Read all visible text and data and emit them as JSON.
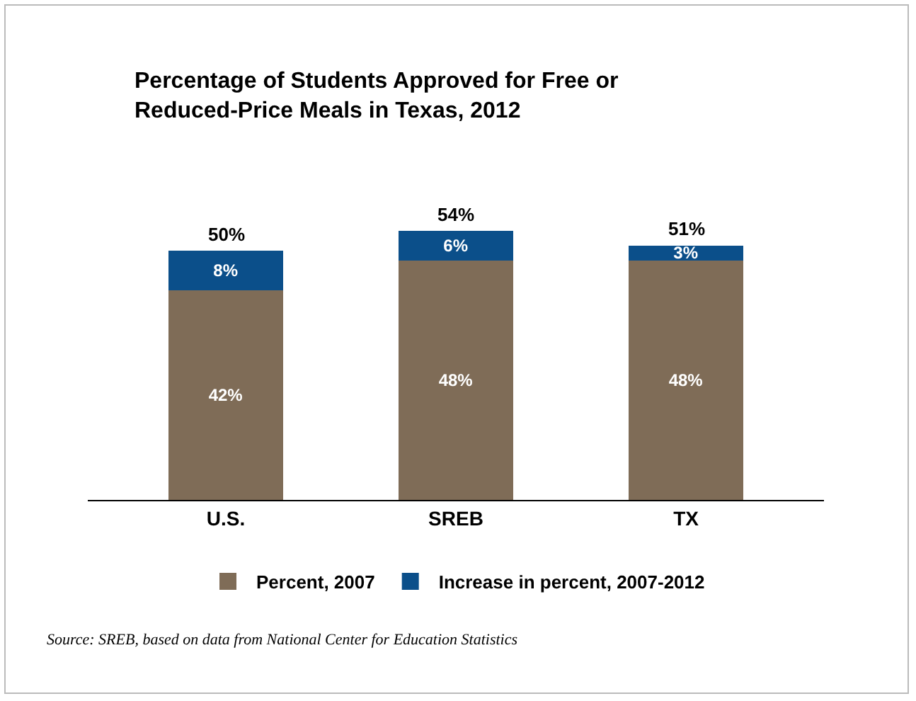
{
  "chart_data": {
    "type": "bar",
    "title": "Percentage of Students Approved for Free or Reduced-Price Meals in Texas, 2012",
    "categories": [
      "U.S.",
      "SREB",
      "TX"
    ],
    "stacked": true,
    "series": [
      {
        "name": "Percent, 2007",
        "color": "#7f6c57",
        "values": [
          42,
          48,
          48
        ],
        "value_labels": [
          "42%",
          "48%",
          "48%"
        ]
      },
      {
        "name": "Increase in percent, 2007-2012",
        "color": "#0b4f8a",
        "values": [
          8,
          6,
          3
        ],
        "value_labels": [
          "8%",
          "6%",
          "3%"
        ]
      }
    ],
    "totals": [
      "50%",
      "54%",
      "51%"
    ],
    "legend": "bottom",
    "grid": false,
    "annotations": [
      "Source: SREB, based on data from National Center for Education Statistics"
    ]
  }
}
